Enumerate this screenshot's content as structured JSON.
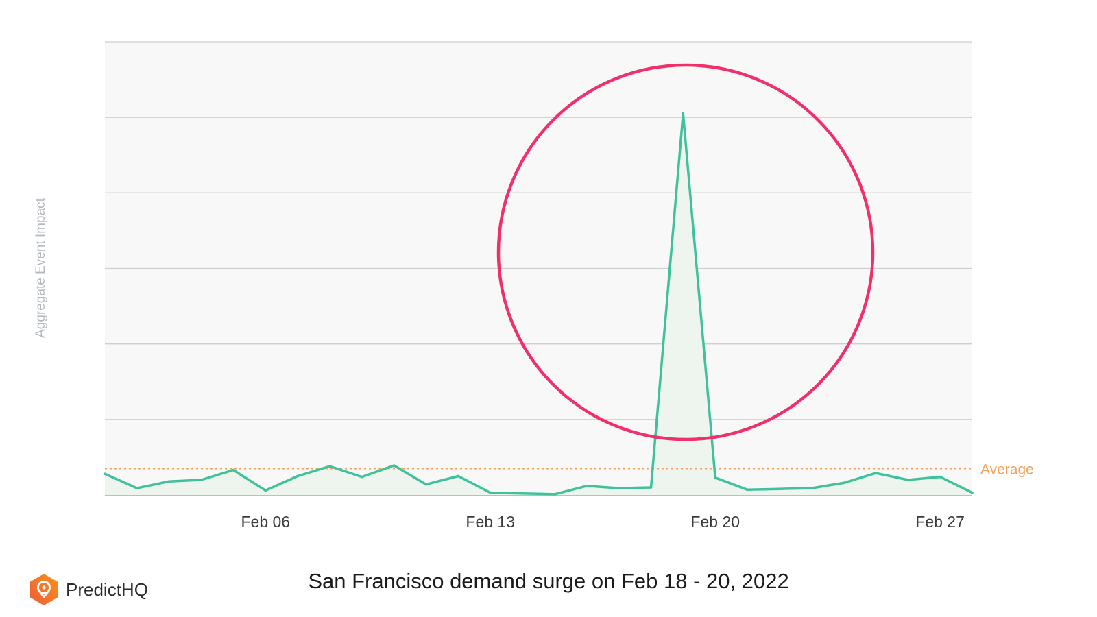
{
  "chart_data": {
    "type": "area",
    "title": "",
    "xlabel": "",
    "ylabel": "Aggregate Event Impact",
    "x_tick_labels": [
      "Feb 06",
      "Feb 13",
      "Feb 20",
      "Feb 27"
    ],
    "x_tick_dates": [
      "2022-02-06",
      "2022-02-13",
      "2022-02-20",
      "2022-02-27"
    ],
    "x": [
      "2022-02-01",
      "2022-02-02",
      "2022-02-03",
      "2022-02-04",
      "2022-02-05",
      "2022-02-06",
      "2022-02-07",
      "2022-02-08",
      "2022-02-09",
      "2022-02-10",
      "2022-02-11",
      "2022-02-12",
      "2022-02-13",
      "2022-02-14",
      "2022-02-15",
      "2022-02-16",
      "2022-02-17",
      "2022-02-18",
      "2022-02-19",
      "2022-02-20",
      "2022-02-21",
      "2022-02-22",
      "2022-02-23",
      "2022-02-24",
      "2022-02-25",
      "2022-02-26",
      "2022-02-27",
      "2022-02-28"
    ],
    "series": [
      {
        "values": [
          0.28,
          0.09,
          0.18,
          0.2,
          0.33,
          0.06,
          0.25,
          0.38,
          0.24,
          0.39,
          0.14,
          0.25,
          0.03,
          0.02,
          0.01,
          0.12,
          0.09,
          0.1,
          5.05,
          0.23,
          0.07,
          0.08,
          0.09,
          0.16,
          0.29,
          0.2,
          0.24,
          0.03
        ]
      }
    ],
    "average": 0.35,
    "average_label": "Average",
    "ylim": [
      0,
      6
    ],
    "y_gridlines": [
      0,
      1,
      2,
      3,
      4,
      5,
      6
    ],
    "grid": true,
    "highlight": "circle around the Feb 19 peak",
    "colors": {
      "line": "#3fc19b",
      "area": "#eef4ee",
      "plot_background": "#f8f8f8",
      "average": "#f4a25a",
      "highlight_circle": "#f0306a",
      "gridline": "#cfcfcf"
    }
  },
  "caption": "San Francisco demand surge on Feb 18 - 20, 2022",
  "brand": {
    "name": "PredictHQ",
    "logo_icon": "predicthq-logo-icon",
    "logo_colors": [
      "#f05a3a",
      "#f7941d"
    ]
  }
}
